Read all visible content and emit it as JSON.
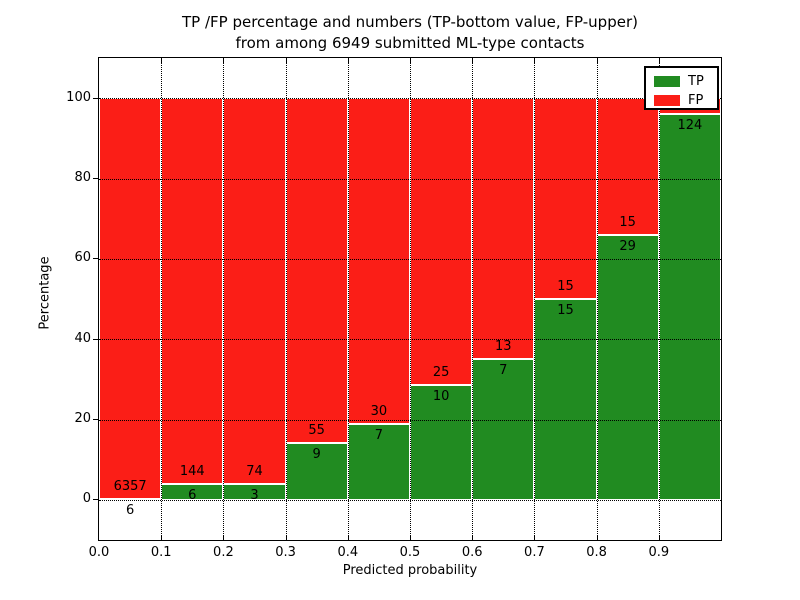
{
  "figure": {
    "title_line1": "TP /FP percentage and numbers (TP-bottom value, FP-upper)",
    "title_line2": "from among 6949 submitted ML-type contacts",
    "xlabel": "Predicted probability",
    "ylabel": "Percentage"
  },
  "colors": {
    "tp_green": "#218b21",
    "fp_red": "#fb1e17",
    "grid": "#000000",
    "text": "#000000",
    "background": "#ffffff"
  },
  "legend": {
    "position": "upper right",
    "entries": [
      {
        "label": "TP",
        "color": "#218b21"
      },
      {
        "label": "FP",
        "color": "#fb1e17"
      }
    ]
  },
  "chart_data": {
    "type": "bar",
    "variant": "stacked_percentage_histogram",
    "title": "TP /FP percentage and numbers (TP-bottom value, FP-upper)\nfrom among 6949 submitted ML-type contacts",
    "xlabel": "Predicted probability",
    "ylabel": "Percentage",
    "total_submitted_contacts": 6949,
    "x_tick_labels": [
      "0.0",
      "0.1",
      "0.2",
      "0.3",
      "0.4",
      "0.5",
      "0.6",
      "0.7",
      "0.8",
      "0.9"
    ],
    "y_ticks": [
      0,
      20,
      40,
      60,
      80,
      100
    ],
    "xlim": [
      0.0,
      1.0
    ],
    "ylim": [
      -10,
      110
    ],
    "grid": true,
    "legend_position": "upper right",
    "series": [
      {
        "name": "TP",
        "color": "#218b21",
        "position": "bottom"
      },
      {
        "name": "FP",
        "color": "#fb1e17",
        "position": "top"
      }
    ],
    "bars": [
      {
        "bin": "0.0-0.1",
        "tp_count": 6,
        "fp_count": 6357,
        "tp_percent": 0.09
      },
      {
        "bin": "0.1-0.2",
        "tp_count": 6,
        "fp_count": 144,
        "tp_percent": 4.0
      },
      {
        "bin": "0.2-0.3",
        "tp_count": 3,
        "fp_count": 74,
        "tp_percent": 3.9
      },
      {
        "bin": "0.3-0.4",
        "tp_count": 9,
        "fp_count": 55,
        "tp_percent": 14.1
      },
      {
        "bin": "0.4-0.5",
        "tp_count": 7,
        "fp_count": 30,
        "tp_percent": 18.9
      },
      {
        "bin": "0.5-0.6",
        "tp_count": 10,
        "fp_count": 25,
        "tp_percent": 28.6
      },
      {
        "bin": "0.6-0.7",
        "tp_count": 7,
        "fp_count": 13,
        "tp_percent": 35.0
      },
      {
        "bin": "0.7-0.8",
        "tp_count": 15,
        "fp_count": 15,
        "tp_percent": 50.0
      },
      {
        "bin": "0.8-0.9",
        "tp_count": 29,
        "fp_count": 15,
        "tp_percent": 65.9
      },
      {
        "bin": "0.9-1.0",
        "tp_count": 124,
        "fp_count": null,
        "fp_label_visible": false,
        "tp_percent": 96.1
      }
    ]
  }
}
